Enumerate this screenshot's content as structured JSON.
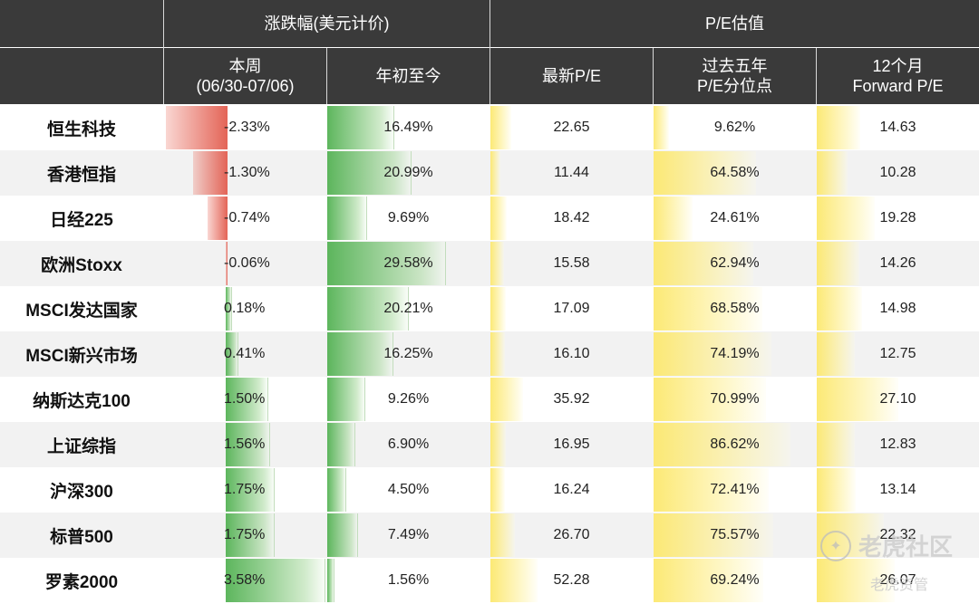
{
  "header": {
    "group_change": "涨跌幅(美元计价)",
    "group_pe": "P/E估值",
    "col_week": "本周\n(06/30-07/06)",
    "col_ytd": "年初至今",
    "col_pe": "最新P/E",
    "col_pct": "过去五年\nP/E分位点",
    "col_fwd": "12个月\nForward P/E"
  },
  "watermark": {
    "main": "老虎社区",
    "sub": "老虎资管"
  },
  "chart_data": {
    "type": "table",
    "columns": [
      "本周(06/30-07/06)",
      "年初至今",
      "最新P/E",
      "过去五年P/E分位点",
      "12个月Forward P/E"
    ],
    "rows": [
      {
        "name": "恒生科技",
        "week": -2.33,
        "ytd": 16.49,
        "pe": 22.65,
        "pct": 9.62,
        "fwd": 14.63,
        "week_label": "-2.33%",
        "ytd_label": "16.49%",
        "pe_label": "22.65",
        "pct_label": "9.62%",
        "fwd_label": "14.63"
      },
      {
        "name": "香港恒指",
        "week": -1.3,
        "ytd": 20.99,
        "pe": 11.44,
        "pct": 64.58,
        "fwd": 10.28,
        "week_label": "-1.30%",
        "ytd_label": "20.99%",
        "pe_label": "11.44",
        "pct_label": "64.58%",
        "fwd_label": "10.28"
      },
      {
        "name": "日经225",
        "week": -0.74,
        "ytd": 9.69,
        "pe": 18.42,
        "pct": 24.61,
        "fwd": 19.28,
        "week_label": "-0.74%",
        "ytd_label": "9.69%",
        "pe_label": "18.42",
        "pct_label": "24.61%",
        "fwd_label": "19.28"
      },
      {
        "name": "欧洲Stoxx",
        "week": -0.06,
        "ytd": 29.58,
        "pe": 15.58,
        "pct": 62.94,
        "fwd": 14.26,
        "week_label": "-0.06%",
        "ytd_label": "29.58%",
        "pe_label": "15.58",
        "pct_label": "62.94%",
        "fwd_label": "14.26"
      },
      {
        "name": "MSCI发达国家",
        "week": 0.18,
        "ytd": 20.21,
        "pe": 17.09,
        "pct": 68.58,
        "fwd": 14.98,
        "week_label": "0.18%",
        "ytd_label": "20.21%",
        "pe_label": "17.09",
        "pct_label": "68.58%",
        "fwd_label": "14.98"
      },
      {
        "name": "MSCI新兴市场",
        "week": 0.41,
        "ytd": 16.25,
        "pe": 16.1,
        "pct": 74.19,
        "fwd": 12.75,
        "week_label": "0.41%",
        "ytd_label": "16.25%",
        "pe_label": "16.10",
        "pct_label": "74.19%",
        "fwd_label": "12.75"
      },
      {
        "name": "纳斯达克100",
        "week": 1.5,
        "ytd": 9.26,
        "pe": 35.92,
        "pct": 70.99,
        "fwd": 27.1,
        "week_label": "1.50%",
        "ytd_label": "9.26%",
        "pe_label": "35.92",
        "pct_label": "70.99%",
        "fwd_label": "27.10"
      },
      {
        "name": "上证综指",
        "week": 1.56,
        "ytd": 6.9,
        "pe": 16.95,
        "pct": 86.62,
        "fwd": 12.83,
        "week_label": "1.56%",
        "ytd_label": "6.90%",
        "pe_label": "16.95",
        "pct_label": "86.62%",
        "fwd_label": "12.83"
      },
      {
        "name": "沪深300",
        "week": 1.75,
        "ytd": 4.5,
        "pe": 16.24,
        "pct": 72.41,
        "fwd": 13.14,
        "week_label": "1.75%",
        "ytd_label": "4.50%",
        "pe_label": "16.24",
        "pct_label": "72.41%",
        "fwd_label": "13.14"
      },
      {
        "name": "标普500",
        "week": 1.75,
        "ytd": 7.49,
        "pe": 26.7,
        "pct": 75.57,
        "fwd": 22.32,
        "week_label": "1.75%",
        "ytd_label": "7.49%",
        "pe_label": "26.70",
        "pct_label": "75.57%",
        "fwd_label": "22.32"
      },
      {
        "name": "罗素2000",
        "week": 3.58,
        "ytd": 1.56,
        "pe": 52.28,
        "pct": 69.24,
        "fwd": 26.07,
        "week_label": "3.58%",
        "ytd_label": "1.56%",
        "pe_label": "52.28",
        "pct_label": "69.24%",
        "fwd_label": "26.07"
      }
    ]
  }
}
